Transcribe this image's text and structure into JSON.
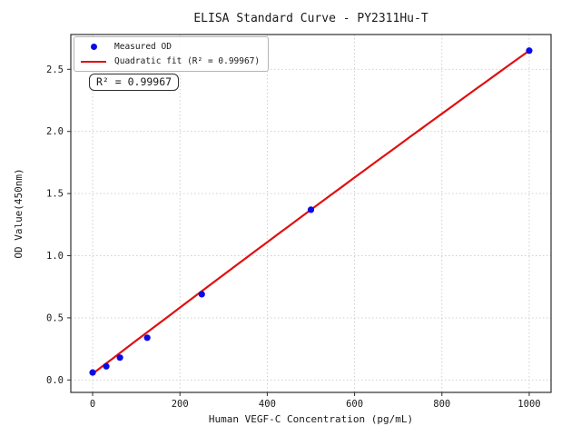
{
  "figure": {
    "title": "ELISA Standard Curve - PY2311Hu-T",
    "annotation": "R² = 0.99967"
  },
  "chart_data": {
    "type": "scatter",
    "title": "ELISA Standard Curve - PY2311Hu-T",
    "xlabel": "Human VEGF-C Concentration (pg/mL)",
    "ylabel": "OD Value(450nm)",
    "xlim": [
      -50,
      1050
    ],
    "ylim": [
      -0.1,
      2.78
    ],
    "grid": true,
    "legend_position": "upper-left",
    "x_ticks": [
      0,
      200,
      400,
      600,
      800,
      1000
    ],
    "x_tick_labels": [
      "0",
      "200",
      "400",
      "600",
      "800",
      "1000"
    ],
    "y_ticks": [
      0.0,
      0.5,
      1.0,
      1.5,
      2.0,
      2.5
    ],
    "y_tick_labels": [
      "0.0",
      "0.5",
      "1.0",
      "1.5",
      "2.0",
      "2.5"
    ],
    "annotation": "R² = 0.99967",
    "series": [
      {
        "name": "Measured OD",
        "type": "scatter",
        "color": "#0b0be6",
        "x": [
          0,
          31.25,
          62.5,
          125,
          250,
          500,
          1000
        ],
        "y": [
          0.06,
          0.11,
          0.18,
          0.34,
          0.69,
          1.37,
          2.65
        ]
      },
      {
        "name": "Quadratic fit (R² = 0.99967)",
        "type": "line",
        "color": "#e01010",
        "fit_coefficients": {
          "a0": 0.05,
          "a1": 0.00268,
          "a2": -8e-08
        },
        "fit_x_range": [
          0,
          1000
        ],
        "r_squared": 0.99967
      }
    ],
    "colors": {
      "grid": "#c9c9c9",
      "spine": "#2e2e2e",
      "text": "#1a1a1a",
      "background": "#ffffff"
    }
  }
}
